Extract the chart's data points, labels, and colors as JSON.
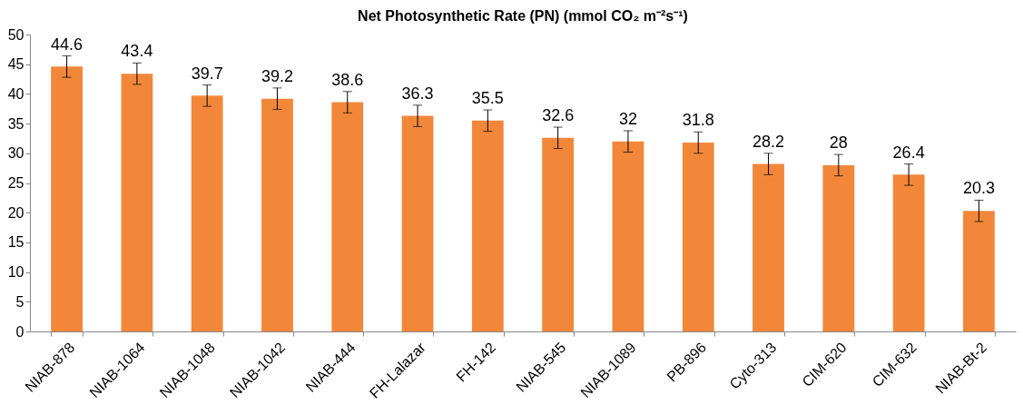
{
  "chart_data": {
    "type": "bar",
    "title": "Net Photosynthetic Rate (PN) (mmol CO₂ m⁻²s⁻¹)",
    "categories": [
      "NIAB-878",
      "NIAB-1064",
      "NIAB-1048",
      "NIAB-1042",
      "NIAB-444",
      "FH-Lalazar",
      "FH-142",
      "NIAB-545",
      "NIAB-1089",
      "PB-896",
      "Cyto-313",
      "CIM-620",
      "CIM-632",
      "NIAB-Bt-2"
    ],
    "values": [
      44.6,
      43.4,
      39.7,
      39.2,
      38.6,
      36.3,
      35.5,
      32.6,
      32,
      31.8,
      28.2,
      28,
      26.4,
      20.3
    ],
    "errors": [
      1.8,
      1.8,
      1.8,
      1.8,
      1.8,
      1.8,
      1.8,
      1.8,
      1.8,
      1.8,
      1.8,
      1.8,
      1.8,
      1.8
    ],
    "color": "#f2873a",
    "ylim": [
      0,
      50
    ],
    "yticks": [
      0,
      5,
      10,
      15,
      20,
      25,
      30,
      35,
      40,
      45,
      50
    ],
    "grid": false,
    "data_labels": true
  }
}
